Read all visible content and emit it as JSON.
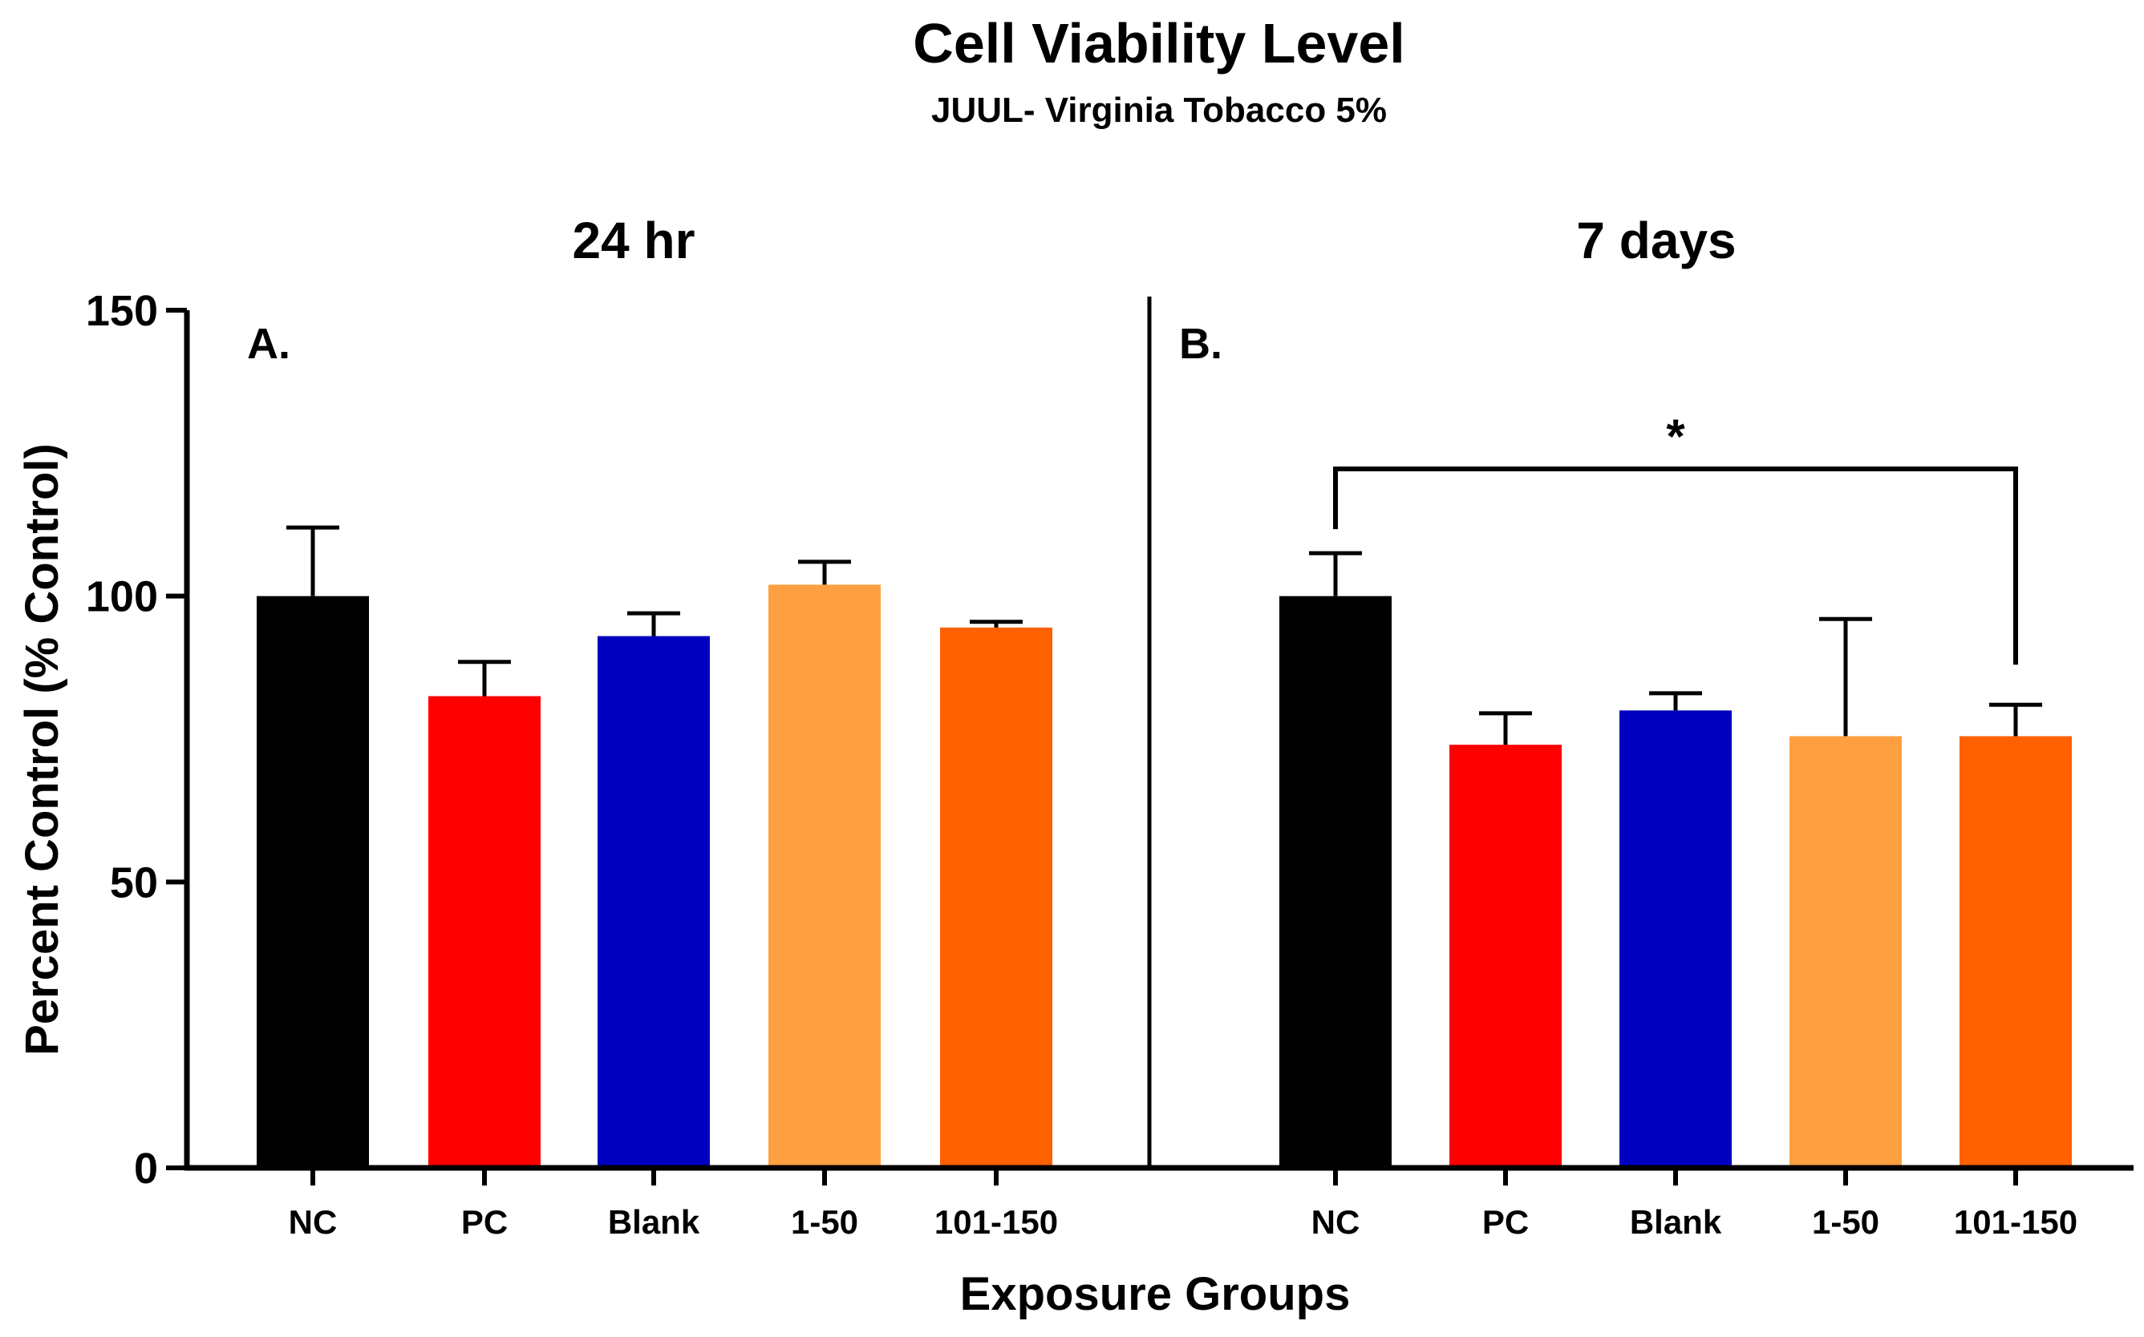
{
  "chart_data": {
    "type": "bar",
    "title": "Cell Viability Level",
    "subtitle": "JUUL- Virginia  Tobacco 5%",
    "xlabel": "Exposure Groups",
    "ylabel": "Percent Control (% Control)",
    "ylim": [
      0,
      150
    ],
    "yticks": [
      0,
      50,
      100,
      150
    ],
    "grid": false,
    "categories": [
      "NC",
      "PC",
      "Blank",
      "1-50",
      "101-150"
    ],
    "colors": [
      "#000000",
      "#ff0000",
      "#0000c0",
      "#ffa040",
      "#ff6000"
    ],
    "panels": [
      {
        "letter": "A.",
        "label": "24 hr",
        "values": [
          100,
          82.5,
          93,
          102,
          94.5
        ],
        "errors": [
          12,
          6,
          4,
          4,
          1
        ]
      },
      {
        "letter": "B.",
        "label": "7 days",
        "values": [
          100,
          74,
          80,
          75.5,
          75.5
        ],
        "errors": [
          7.5,
          5.5,
          3,
          20.5,
          5.5
        ]
      }
    ],
    "annotations": [
      {
        "panel": 1,
        "from": "NC",
        "to": "101-150",
        "text": "*"
      }
    ]
  }
}
